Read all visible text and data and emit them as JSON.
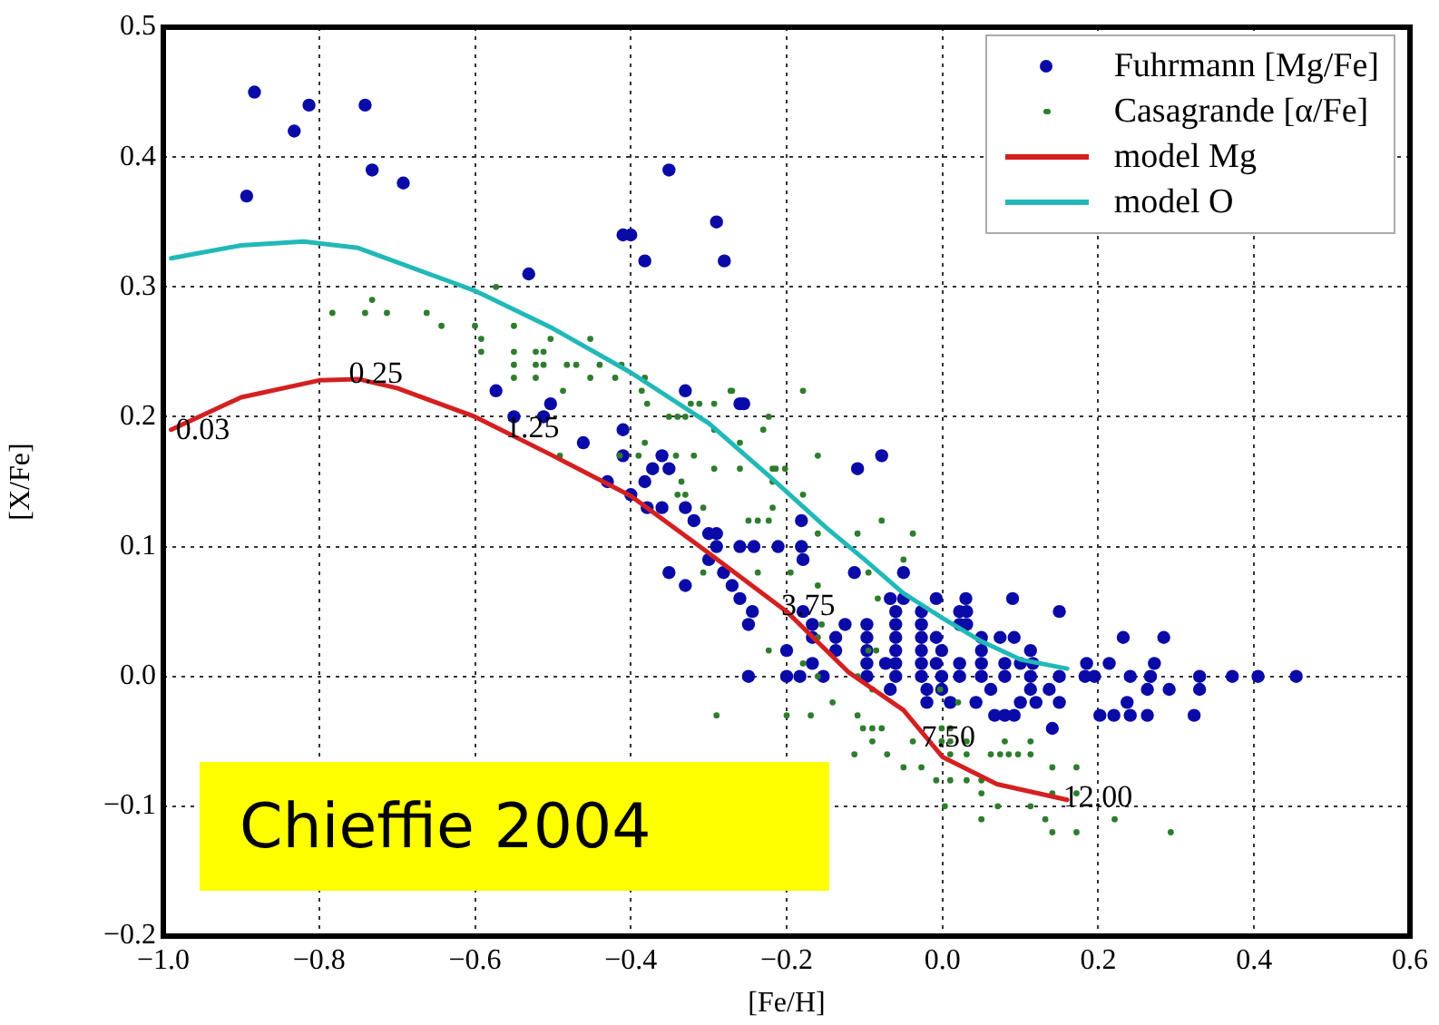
{
  "chart_data": {
    "type": "scatter",
    "xlabel": "[Fe/H]",
    "ylabel": "[X/Fe]",
    "xlim": [
      -1.0,
      0.6
    ],
    "ylim": [
      -0.2,
      0.5
    ],
    "xticks": [
      {
        "value": -1.0,
        "label": "−1.0"
      },
      {
        "value": -0.8,
        "label": "−0.8"
      },
      {
        "value": -0.6,
        "label": "−0.6"
      },
      {
        "value": -0.4,
        "label": "−0.4"
      },
      {
        "value": -0.2,
        "label": "−0.2"
      },
      {
        "value": 0,
        "label": "0.0"
      },
      {
        "value": 0.2,
        "label": "0.2"
      },
      {
        "value": 0.4,
        "label": "0.4"
      },
      {
        "value": 0.6,
        "label": "0.6"
      }
    ],
    "yticks": [
      {
        "value": -0.2,
        "label": "−0.2"
      },
      {
        "value": -0.1,
        "label": "−0.1"
      },
      {
        "value": 0,
        "label": "0.0"
      },
      {
        "value": 0.1,
        "label": "0.1"
      },
      {
        "value": 0.2,
        "label": "0.2"
      },
      {
        "value": 0.3,
        "label": "0.3"
      },
      {
        "value": 0.4,
        "label": "0.4"
      },
      {
        "value": 0.5,
        "label": "0.5"
      }
    ],
    "grid": true,
    "legend": "top right",
    "marker": "circle",
    "series": [
      {
        "name": "Fuhrmann [Mg/Fe]",
        "type": "scatter",
        "color": "#0a0aa8",
        "x": [
          -0.883,
          -0.832,
          -0.813,
          -0.741,
          -0.893,
          -0.732,
          -0.692,
          -0.351,
          -0.29,
          -0.41,
          -0.4,
          -0.382,
          -0.28,
          -0.531,
          -0.573,
          -0.33,
          -0.26,
          -0.255,
          -0.503,
          -0.55,
          -0.512,
          -0.461,
          -0.41,
          -0.41,
          -0.36,
          -0.372,
          -0.351,
          -0.382,
          -0.43,
          -0.4,
          -0.379,
          -0.36,
          -0.33,
          -0.319,
          -0.3,
          -0.29,
          -0.29,
          -0.26,
          -0.242,
          -0.211,
          -0.181,
          -0.181,
          -0.109,
          -0.078,
          -0.351,
          -0.33,
          -0.3,
          -0.281,
          -0.27,
          -0.26,
          -0.244,
          -0.249,
          -0.2,
          -0.249,
          -0.2,
          -0.179,
          -0.179,
          -0.05,
          -0.113,
          -0.067,
          -0.05,
          -0.008,
          0.03,
          0.09,
          -0.06,
          -0.027,
          0.022,
          0.031,
          0.15,
          -0.167,
          -0.125,
          -0.097,
          -0.06,
          -0.027,
          0.022,
          0.031,
          -0.167,
          -0.137,
          -0.097,
          -0.06,
          -0.027,
          -0.008,
          0.05,
          0.074,
          0.092,
          0.232,
          0.284,
          -0.137,
          -0.097,
          -0.06,
          -0.027,
          -0.001,
          0.05,
          0.113,
          -0.167,
          -0.097,
          -0.073,
          -0.06,
          -0.027,
          -0.008,
          0.022,
          0.05,
          0.08,
          0.1,
          0.116,
          0.185,
          0.214,
          0.272,
          -0.183,
          -0.153,
          -0.097,
          -0.06,
          -0.027,
          -0.001,
          0.022,
          0.05,
          0.08,
          0.113,
          0.15,
          0.183,
          0.195,
          0.241,
          0.267,
          0.33,
          0.372,
          0.405,
          0.454,
          -0.067,
          -0.02,
          -0.001,
          0.062,
          0.113,
          0.137,
          0.263,
          0.291,
          0.33,
          -0.02,
          0.01,
          0.043,
          0.1,
          0.12,
          0.15,
          0.237,
          0.067,
          0.08,
          0.092,
          0.202,
          0.22,
          0.241,
          0.263,
          0.323,
          0.141
        ],
        "values": [
          0.45,
          0.42,
          0.44,
          0.44,
          0.37,
          0.39,
          0.38,
          0.39,
          0.35,
          0.34,
          0.34,
          0.32,
          0.32,
          0.31,
          0.22,
          0.22,
          0.21,
          0.21,
          0.21,
          0.2,
          0.2,
          0.18,
          0.19,
          0.17,
          0.17,
          0.16,
          0.16,
          0.15,
          0.15,
          0.14,
          0.13,
          0.13,
          0.13,
          0.12,
          0.11,
          0.11,
          0.1,
          0.1,
          0.1,
          0.1,
          0.12,
          0.1,
          0.16,
          0.17,
          0.08,
          0.07,
          0.09,
          0.08,
          0.07,
          0.06,
          0.05,
          0.04,
          0.02,
          0.0,
          0.0,
          0.09,
          0.05,
          0.08,
          0.08,
          0.06,
          0.06,
          0.06,
          0.06,
          0.06,
          0.05,
          0.05,
          0.05,
          0.05,
          0.05,
          0.04,
          0.04,
          0.04,
          0.04,
          0.04,
          0.04,
          0.04,
          0.03,
          0.03,
          0.03,
          0.03,
          0.03,
          0.03,
          0.03,
          0.03,
          0.03,
          0.03,
          0.03,
          0.02,
          0.02,
          0.02,
          0.02,
          0.02,
          0.02,
          0.02,
          0.01,
          0.01,
          0.01,
          0.01,
          0.01,
          0.01,
          0.01,
          0.01,
          0.01,
          0.01,
          0.01,
          0.01,
          0.01,
          0.01,
          0,
          0,
          0,
          0,
          0,
          0,
          0,
          0,
          0,
          0,
          0,
          0,
          0,
          0,
          0,
          0,
          0,
          0,
          0,
          -0.01,
          -0.01,
          -0.01,
          -0.01,
          -0.01,
          -0.01,
          -0.01,
          -0.01,
          -0.01,
          -0.02,
          -0.02,
          -0.02,
          -0.02,
          -0.02,
          -0.02,
          -0.02,
          -0.03,
          -0.03,
          -0.03,
          -0.03,
          -0.03,
          -0.03,
          -0.03,
          -0.03,
          -0.04
        ]
      },
      {
        "name": "Casagrande [α/Fe]",
        "type": "scatter",
        "color": "#2e7d2e",
        "x": [
          -0.783,
          -0.741,
          -0.732,
          -0.713,
          -0.662,
          -0.643,
          -0.573,
          -0.6,
          -0.592,
          -0.592,
          -0.55,
          -0.55,
          -0.55,
          -0.522,
          -0.512,
          -0.522,
          -0.512,
          -0.503,
          -0.522,
          -0.482,
          -0.47,
          -0.452,
          -0.44,
          -0.452,
          -0.42,
          -0.412,
          -0.382,
          -0.351,
          -0.34,
          -0.33,
          -0.323,
          -0.312,
          -0.272,
          -0.293,
          -0.223,
          -0.23,
          -0.39,
          -0.379,
          -0.491,
          -0.382,
          -0.319,
          -0.293,
          -0.26,
          -0.26,
          -0.214,
          -0.202,
          -0.34,
          -0.33,
          -0.55,
          -0.487,
          -0.293,
          -0.27,
          -0.179,
          -0.16,
          -0.218,
          -0.218,
          -0.218,
          -0.237,
          -0.223,
          -0.249,
          -0.179,
          -0.16,
          -0.078,
          -0.038,
          -0.335,
          -0.307,
          -0.342,
          -0.414,
          -0.386,
          -0.195,
          -0.16,
          -0.237,
          -0.307,
          -0.179,
          -0.223,
          -0.16,
          -0.141,
          -0.29,
          -0.2,
          -0.113,
          -0.09,
          -0.071,
          -0.05,
          -0.027,
          -0.008,
          0.031,
          0.05,
          0.003,
          0.05,
          -0.078,
          -0.09,
          -0.109,
          -0.16,
          -0.095,
          -0.109,
          -0.05,
          -0.083,
          -0.169,
          -0.109,
          -0.102,
          -0.09,
          -0.038,
          0.01,
          -0.001,
          0.01,
          -0.001,
          0.01,
          0.031,
          0.08,
          0.113,
          0.01,
          0.031,
          0.062,
          0.074,
          0.085,
          0.097,
          0.113,
          0.141,
          0.172,
          0.05,
          0.071,
          0.113,
          0.141,
          0.172,
          0.132,
          0.141,
          0.172,
          0.221,
          0.293,
          -0.003,
          0.02,
          -0.095,
          -0.085,
          -0.155
        ],
        "values": [
          0.28,
          0.28,
          0.29,
          0.28,
          0.28,
          0.27,
          0.3,
          0.27,
          0.26,
          0.25,
          0.27,
          0.25,
          0.24,
          0.25,
          0.25,
          0.24,
          0.24,
          0.26,
          0.23,
          0.24,
          0.24,
          0.26,
          0.24,
          0.23,
          0.23,
          0.24,
          0.23,
          0.2,
          0.2,
          0.2,
          0.21,
          0.21,
          0.22,
          0.19,
          0.2,
          0.19,
          0.17,
          0.21,
          0.17,
          0.18,
          0.17,
          0.16,
          0.18,
          0.16,
          0.16,
          0.16,
          0.14,
          0.14,
          0.23,
          0.22,
          0.21,
          0.22,
          0.22,
          0.17,
          0.16,
          0.15,
          0.13,
          0.12,
          0.12,
          0.12,
          0.14,
          0.11,
          0.12,
          0.11,
          0.15,
          0.13,
          0.17,
          0.17,
          0.22,
          0.08,
          0.07,
          0.08,
          0.08,
          0.01,
          0.02,
          0.0,
          -0.02,
          -0.03,
          -0.03,
          -0.06,
          -0.05,
          -0.06,
          -0.07,
          -0.07,
          -0.08,
          -0.08,
          -0.08,
          -0.1,
          -0.11,
          -0.04,
          -0.01,
          0.0,
          0.03,
          0.08,
          0.11,
          0.09,
          0.06,
          -0.03,
          -0.03,
          -0.04,
          -0.04,
          -0.05,
          -0.08,
          -0.04,
          -0.04,
          -0.05,
          -0.05,
          -0.05,
          -0.05,
          -0.05,
          -0.06,
          -0.06,
          -0.06,
          -0.06,
          -0.06,
          -0.06,
          -0.06,
          -0.07,
          -0.07,
          -0.09,
          -0.1,
          -0.1,
          -0.09,
          -0.09,
          -0.11,
          -0.12,
          -0.12,
          -0.11,
          -0.12,
          -0.01,
          -0.02,
          0.02,
          0.02,
          0.04
        ]
      },
      {
        "name": "model Mg",
        "type": "line",
        "marker": "none",
        "color": "#d42020",
        "x": [
          -0.99,
          -0.9,
          -0.8,
          -0.75,
          -0.7,
          -0.6,
          -0.5,
          -0.4,
          -0.3,
          -0.2,
          -0.12,
          -0.05,
          0.0,
          0.07,
          0.16
        ],
        "values": [
          0.19,
          0.215,
          0.228,
          0.229,
          0.222,
          0.2,
          0.17,
          0.139,
          0.095,
          0.05,
          0.003,
          -0.026,
          -0.062,
          -0.083,
          -0.095
        ]
      },
      {
        "name": "model O",
        "type": "line",
        "marker": "none",
        "color": "#22b8b8",
        "x": [
          -0.99,
          -0.9,
          -0.82,
          -0.75,
          -0.6,
          -0.5,
          -0.4,
          -0.3,
          -0.22,
          -0.15,
          -0.1,
          -0.05,
          0.0,
          0.05,
          0.1,
          0.16
        ],
        "values": [
          0.322,
          0.332,
          0.335,
          0.33,
          0.297,
          0.268,
          0.234,
          0.195,
          0.153,
          0.115,
          0.09,
          0.064,
          0.045,
          0.027,
          0.013,
          0.006
        ]
      }
    ],
    "annotations": [
      {
        "text": "0.03",
        "x": -0.984,
        "y": 0.183
      },
      {
        "text": "0.25",
        "x": -0.762,
        "y": 0.226
      },
      {
        "text": "1.25",
        "x": -0.561,
        "y": 0.184
      },
      {
        "text": "3.75",
        "x": -0.207,
        "y": 0.047
      },
      {
        "text": "7.50",
        "x": -0.027,
        "y": -0.054
      },
      {
        "text": "12.00",
        "x": 0.155,
        "y": -0.1
      },
      "Chieffie 2004"
    ]
  }
}
